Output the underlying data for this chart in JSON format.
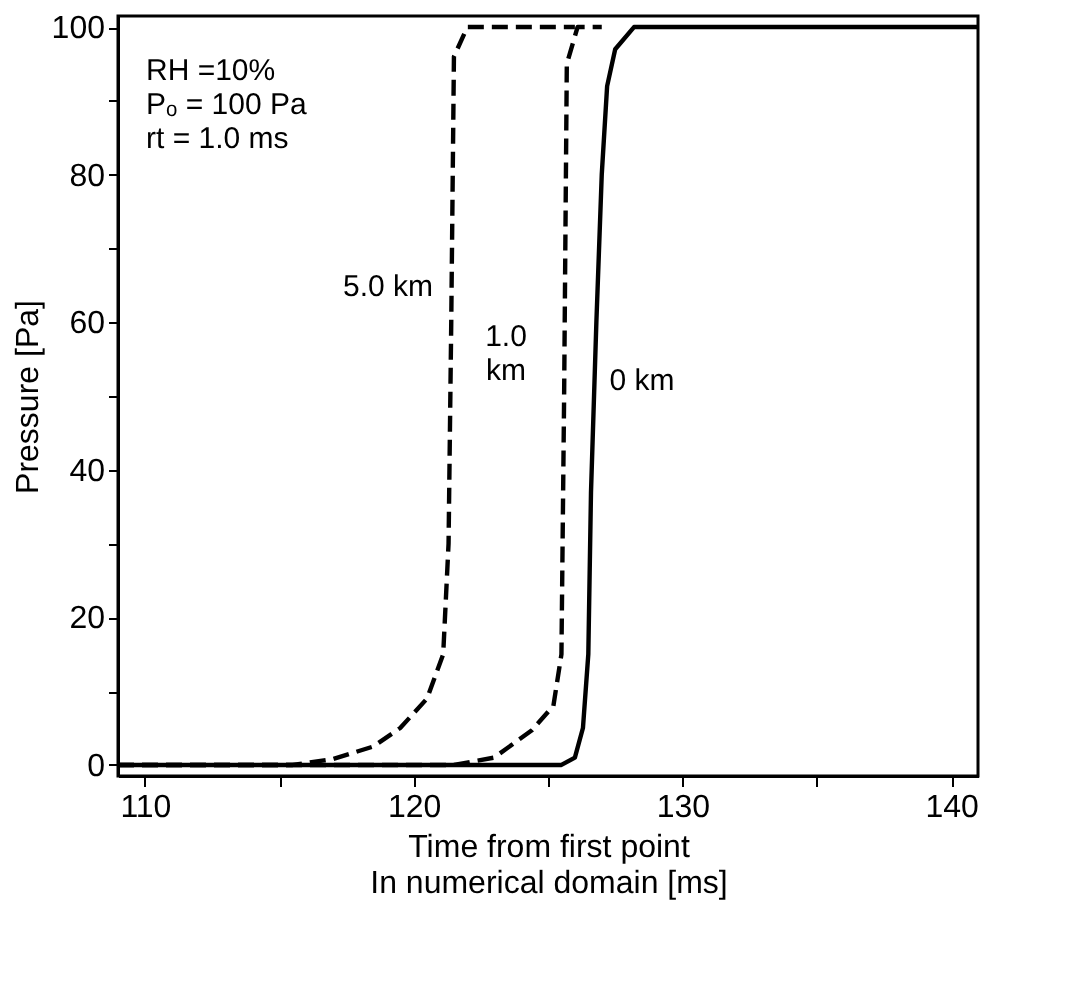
{
  "chart_data": {
    "type": "line",
    "xlabel": "Time from first point\nIn numerical domain [ms]",
    "ylabel": "Pressure [Pa]",
    "xlim": [
      109,
      141
    ],
    "xticks": [
      110,
      {
        "value": 115,
        "label": null
      },
      120,
      {
        "value": 125,
        "label": null
      },
      130,
      {
        "value": 135,
        "label": null
      },
      140
    ],
    "ylim": [
      -1.5,
      101.5
    ],
    "yticks": [
      0,
      {
        "value": 10,
        "label": null
      },
      20,
      {
        "value": 30,
        "label": null
      },
      40,
      {
        "value": 50,
        "label": null
      },
      60,
      {
        "value": 70,
        "label": null
      },
      80,
      {
        "value": 90,
        "label": null
      },
      100
    ],
    "grid": false,
    "marker": "none",
    "series": [
      {
        "color": "#000000",
        "line_style": "dashed",
        "x": [
          109,
          115.5,
          117,
          118.5,
          119.5,
          120.5,
          121.1,
          121.3,
          121.4,
          121.5,
          122,
          126
        ],
        "values": [
          0,
          0,
          0.8,
          2.5,
          5,
          9,
          15,
          30,
          60,
          96,
          100,
          100
        ]
      },
      {
        "color": "#000000",
        "line_style": "dashed",
        "x": [
          109,
          121.5,
          123,
          124.4,
          125.2,
          125.5,
          125.6,
          125.7,
          126.1,
          127
        ],
        "values": [
          0,
          0,
          1,
          4.7,
          8,
          15,
          50,
          95,
          100,
          100
        ]
      },
      {
        "color": "#000000",
        "line_style": "solid",
        "x": [
          109,
          125.5,
          126.0,
          126.3,
          126.5,
          126.6,
          126.8,
          127.0,
          127.2,
          127.5,
          128.2,
          141
        ],
        "values": [
          0,
          0,
          1,
          5,
          15,
          37,
          60,
          80,
          92,
          97,
          100,
          100
        ]
      }
    ],
    "annotations": [
      "RH =10%\nPₒ = 100 Pa\nrt = 1.0 ms",
      "5.0 km",
      "1.0\nkm",
      "0 km"
    ]
  }
}
